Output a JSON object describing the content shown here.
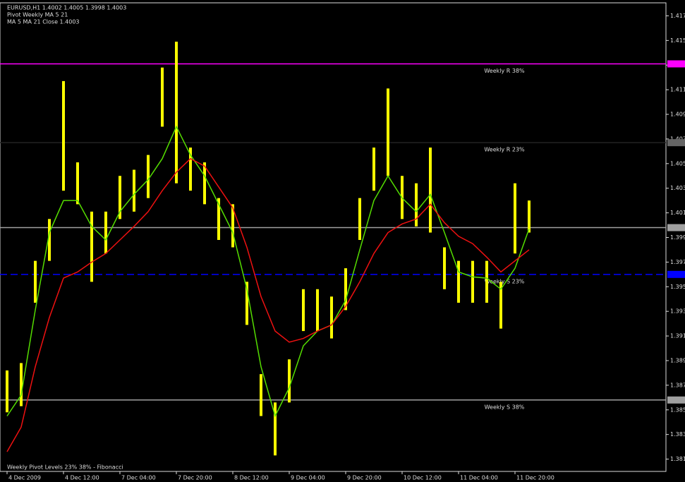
{
  "chart_data": {
    "type": "ohlc",
    "info": [
      "EURUSD,H1  1.4002 1.4005 1.3998 1.4003",
      "Pivot Weekly MA 5 21",
      "MA 5  MA 21  Close 1.4003"
    ],
    "footnote": "Weekly Pivot Levels 23% 38% - Fibonacci",
    "categories": [
      "4 Dec 2009",
      null,
      null,
      null,
      "4 Dec 12:00",
      null,
      null,
      null,
      "7 Dec 04:00",
      null,
      null,
      null,
      "7 Dec 20:00",
      null,
      null,
      null,
      "8 Dec 12:00",
      null,
      null,
      null,
      "9 Dec 04:00",
      null,
      null,
      null,
      "9 Dec 20:00",
      null,
      null,
      null,
      "10 Dec 12:00",
      null,
      null,
      null,
      "11 Dec 04:00",
      null,
      null,
      null,
      "11 Dec 20:00",
      null
    ],
    "high": [
      1.3882,
      1.3888,
      1.3971,
      1.4005,
      1.4117,
      1.4051,
      1.4011,
      1.4011,
      1.404,
      1.4045,
      1.4057,
      1.4128,
      1.4149,
      1.4063,
      1.4051,
      1.4022,
      1.4017,
      1.3954,
      1.3879,
      1.3856,
      1.3891,
      1.3948,
      1.3948,
      1.3942,
      1.3965,
      1.4022,
      1.4063,
      1.4111,
      1.404,
      1.4034,
      1.4063,
      1.3982,
      1.3971,
      1.3971,
      1.3971,
      1.3954,
      1.4034,
      1.402
    ],
    "low": [
      1.3848,
      1.3853,
      1.3937,
      1.3971,
      1.4028,
      1.4017,
      1.3954,
      1.3977,
      1.4005,
      1.4011,
      1.4022,
      1.408,
      1.4034,
      1.4028,
      1.4017,
      1.3988,
      1.3982,
      1.3919,
      1.3845,
      1.3813,
      1.3856,
      1.3914,
      1.3914,
      1.3908,
      1.3931,
      1.3988,
      1.4028,
      1.404,
      1.4005,
      1.3999,
      1.3994,
      1.3948,
      1.3937,
      1.3937,
      1.3937,
      1.3916,
      1.3977,
      1.3994
    ],
    "bar_color": "#ffff00",
    "series": [
      {
        "color": "#55dd00",
        "values": [
          1.3845,
          1.3862,
          1.3931,
          1.3994,
          1.402,
          1.402,
          1.3999,
          1.3988,
          1.4011,
          1.4025,
          1.4037,
          1.4054,
          1.408,
          1.4057,
          1.404,
          1.4017,
          1.3994,
          1.3948,
          1.3885,
          1.3845,
          1.3868,
          1.3902,
          1.3914,
          1.3919,
          1.3939,
          1.398,
          1.402,
          1.404,
          1.4022,
          1.4011,
          1.4025,
          1.3994,
          1.3962,
          1.3958,
          1.3957,
          1.3948,
          1.3965,
          1.3997
        ]
      },
      {
        "color": "#ee1111",
        "values": [
          1.3816,
          1.3836,
          1.3885,
          1.3925,
          1.3957,
          1.3962,
          1.397,
          1.3977,
          1.3988,
          1.3999,
          1.4011,
          1.4028,
          1.4043,
          1.4054,
          1.4048,
          1.4031,
          1.4014,
          1.3982,
          1.3942,
          1.3914,
          1.3905,
          1.3908,
          1.3914,
          1.3919,
          1.3934,
          1.3954,
          1.3977,
          1.3994,
          1.4001,
          1.4005,
          1.4017,
          1.4002,
          1.3991,
          1.3985,
          1.3974,
          1.3962,
          1.3971,
          1.398
        ]
      }
    ],
    "levels": [
      {
        "name": "Weekly R 38%",
        "value": 1.4131,
        "color": "#ff00ff"
      },
      {
        "name": "Weekly R 23%",
        "value": 1.4067,
        "color": "#222222"
      },
      {
        "value": 1.3998,
        "color": "#a0a0a0"
      },
      {
        "name": "Weekly S 23%",
        "value": 1.396,
        "color": "#0000ff",
        "dashed": true
      },
      {
        "name": "Weekly S 38%",
        "value": 1.3858,
        "color": "#a0a0a0"
      }
    ],
    "ylim": [
      1.38,
      1.418
    ],
    "yticks": [
      {
        "value": 1.381,
        "label": "1.3810"
      },
      {
        "value": 1.383,
        "label": "1.3830"
      },
      {
        "value": 1.385,
        "label": "1.3850"
      },
      {
        "value": 1.387,
        "label": "1.3870"
      },
      {
        "value": 1.389,
        "label": "1.3890"
      },
      {
        "value": 1.391,
        "label": "1.3910"
      },
      {
        "value": 1.393,
        "label": "1.3930"
      },
      {
        "value": 1.395,
        "label": "1.3950"
      },
      {
        "value": 1.397,
        "label": "1.3970"
      },
      {
        "value": 1.399,
        "label": "1.3990"
      },
      {
        "value": 1.401,
        "label": "1.4010"
      },
      {
        "value": 1.403,
        "label": "1.4030"
      },
      {
        "value": 1.405,
        "label": "1.4050"
      },
      {
        "value": 1.407,
        "label": "1.4070"
      },
      {
        "value": 1.409,
        "label": "1.4090"
      },
      {
        "value": 1.411,
        "label": "1.4110"
      },
      {
        "value": 1.413,
        "label": "1.4130"
      },
      {
        "value": 1.415,
        "label": "1.4150"
      },
      {
        "value": 1.417,
        "label": "1.4170"
      }
    ]
  }
}
